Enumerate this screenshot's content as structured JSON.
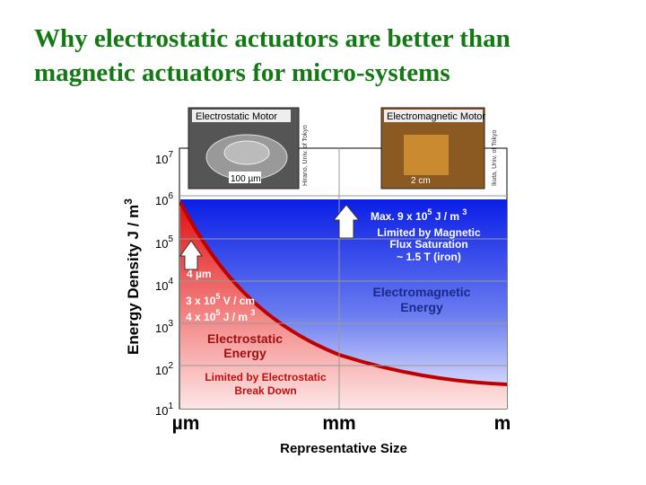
{
  "slide": {
    "title": [
      "Why electrostatic actuators are better than",
      "magnetic actuators for micro-systems"
    ]
  },
  "figure": {
    "photos": [
      {
        "label": "Electrostatic Motor",
        "scale": "100 µm",
        "credit": "Hirano, Univ. of Tokyo"
      },
      {
        "label": "Electromagnetic Motor",
        "scale": "2 cm",
        "credit": "Ikuta, Univ. of Tokyo"
      }
    ],
    "y_axis": {
      "label": "Energy Density    J / m",
      "label_exp": "3",
      "ticks": [
        {
          "base": "10",
          "exp": "7"
        },
        {
          "base": "10",
          "exp": "6"
        },
        {
          "base": "10",
          "exp": "5"
        },
        {
          "base": "10",
          "exp": "4"
        },
        {
          "base": "10",
          "exp": "3"
        },
        {
          "base": "10",
          "exp": "2"
        },
        {
          "base": "10",
          "exp": "1"
        }
      ]
    },
    "x_axis": {
      "label": "Representative Size",
      "ticks": [
        "µm",
        "mm",
        "m"
      ]
    },
    "magnetic": {
      "max": [
        "Max.  9 x 10",
        "5",
        " J / m ",
        "3"
      ],
      "limit": [
        "Limited by Magnetic",
        "Flux Saturation",
        "~ 1.5 T (iron)"
      ],
      "energy": [
        "Electromagnetic",
        "Energy"
      ]
    },
    "electrostatic": {
      "gap": "4 µm",
      "field": [
        "3 x 10",
        "5",
        " V / cm"
      ],
      "density": [
        "4 x 10",
        "5",
        " J / m ",
        "3"
      ],
      "energy": [
        "Electrostatic",
        "Energy"
      ],
      "limit": [
        "Limited by Electrostatic",
        "Break Down"
      ]
    }
  }
}
